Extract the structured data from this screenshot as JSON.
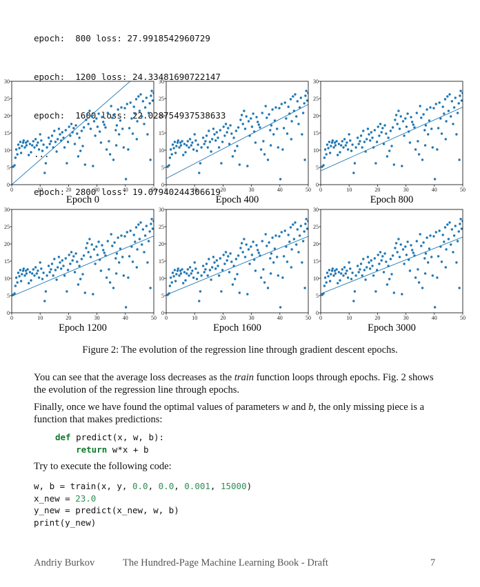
{
  "log_lines": [
    "epoch:  800 loss: 27.9918542960729",
    "epoch:  1200 loss: 24.33481690722147",
    "epoch:  1600 loss: 22.028754937538633",
    "...",
    "epoch:  2800 loss: 19.07940244306619"
  ],
  "chart_data": {
    "type": "scatter",
    "xlim": [
      0,
      50
    ],
    "ylim": [
      0,
      30
    ],
    "xticks": [
      0,
      10,
      20,
      30,
      40,
      50
    ],
    "yticks": [
      0,
      5,
      10,
      15,
      20,
      25,
      30
    ],
    "point_color": "#1f77b4",
    "line_color": "#1f77b4",
    "points": [
      [
        0.5,
        5.2
      ],
      [
        1,
        5.6
      ],
      [
        1.3,
        7.8
      ],
      [
        1.6,
        10.2
      ],
      [
        2,
        8.8
      ],
      [
        2.3,
        11.6
      ],
      [
        2.7,
        10.6
      ],
      [
        3,
        12.4
      ],
      [
        3.3,
        9.2
      ],
      [
        3.6,
        11.2
      ],
      [
        4,
        12.2
      ],
      [
        4.2,
        12.8
      ],
      [
        4.6,
        10.8
      ],
      [
        5,
        12.2
      ],
      [
        5.2,
        11.4
      ],
      [
        5.6,
        12.6
      ],
      [
        6,
        8.6
      ],
      [
        6.4,
        11.8
      ],
      [
        6.8,
        9.4
      ],
      [
        7.2,
        11.4
      ],
      [
        7.6,
        12.6
      ],
      [
        8,
        10.8
      ],
      [
        8.4,
        13.2
      ],
      [
        8.8,
        11.4
      ],
      [
        9.2,
        12.2
      ],
      [
        9.6,
        10.2
      ],
      [
        10,
        14.6
      ],
      [
        10.4,
        12.8
      ],
      [
        10.8,
        9.8
      ],
      [
        11.2,
        11.6
      ],
      [
        11.6,
        3.4
      ],
      [
        12,
        6.2
      ],
      [
        12.4,
        10.8
      ],
      [
        13,
        13.6
      ],
      [
        13.4,
        11.8
      ],
      [
        13.8,
        12.6
      ],
      [
        14.2,
        14.2
      ],
      [
        14.6,
        10.8
      ],
      [
        15,
        15.6
      ],
      [
        15.4,
        12.4
      ],
      [
        15.8,
        9.6
      ],
      [
        16.2,
        13.2
      ],
      [
        16.6,
        16.2
      ],
      [
        17,
        14.6
      ],
      [
        17.4,
        12.8
      ],
      [
        17.8,
        15.2
      ],
      [
        18.2,
        13.6
      ],
      [
        18.6,
        10.8
      ],
      [
        19,
        15.8
      ],
      [
        19.4,
        6.2
      ],
      [
        19.8,
        12.4
      ],
      [
        20.2,
        16.8
      ],
      [
        20.6,
        14.2
      ],
      [
        21,
        17.6
      ],
      [
        21.4,
        15.2
      ],
      [
        21.8,
        16.4
      ],
      [
        22.2,
        11.8
      ],
      [
        22.6,
        17.2
      ],
      [
        23,
        14.8
      ],
      [
        23.4,
        8.2
      ],
      [
        23.8,
        13.6
      ],
      [
        24.2,
        9.8
      ],
      [
        24.6,
        15.6
      ],
      [
        25,
        11.2
      ],
      [
        25.4,
        16.6
      ],
      [
        25.8,
        5.8
      ],
      [
        26.2,
        18.8
      ],
      [
        26.6,
        20.2
      ],
      [
        27,
        17.6
      ],
      [
        27.4,
        21.4
      ],
      [
        27.8,
        16.2
      ],
      [
        28.2,
        19.8
      ],
      [
        28.6,
        5.4
      ],
      [
        29,
        18.4
      ],
      [
        29.4,
        14.2
      ],
      [
        29.8,
        19.2
      ],
      [
        30.2,
        16.8
      ],
      [
        30.6,
        20.6
      ],
      [
        31,
        15.4
      ],
      [
        31.4,
        12.2
      ],
      [
        31.8,
        19.6
      ],
      [
        32.2,
        18.2
      ],
      [
        32.6,
        17.4
      ],
      [
        33,
        16.6
      ],
      [
        33.4,
        10.2
      ],
      [
        33.8,
        20.8
      ],
      [
        34.2,
        12.6
      ],
      [
        34.6,
        8.8
      ],
      [
        35,
        22.8
      ],
      [
        35.4,
        19.4
      ],
      [
        35.8,
        7.2
      ],
      [
        36.2,
        20.4
      ],
      [
        36.6,
        15.8
      ],
      [
        37,
        17.2
      ],
      [
        37.4,
        21.8
      ],
      [
        37.8,
        14.6
      ],
      [
        38.2,
        18.6
      ],
      [
        38.6,
        22.4
      ],
      [
        39,
        16.2
      ],
      [
        39.4,
        10.8
      ],
      [
        39.8,
        22.2
      ],
      [
        40.2,
        1.6
      ],
      [
        40.6,
        23.4
      ],
      [
        41,
        10.2
      ],
      [
        41.4,
        16.4
      ],
      [
        41.8,
        23.8
      ],
      [
        42.2,
        19.2
      ],
      [
        42.6,
        14.8
      ],
      [
        43,
        22.6
      ],
      [
        43.4,
        20.6
      ],
      [
        43.8,
        24.8
      ],
      [
        44.2,
        18.4
      ],
      [
        44.6,
        25.6
      ],
      [
        45,
        21.4
      ],
      [
        45.4,
        26.2
      ],
      [
        45.8,
        19.8
      ],
      [
        46.2,
        24.2
      ],
      [
        46.6,
        17.6
      ],
      [
        47,
        22.4
      ],
      [
        47.4,
        25.2
      ],
      [
        47.8,
        14.6
      ],
      [
        48.2,
        20.8
      ],
      [
        48.6,
        23.6
      ],
      [
        49,
        25.8
      ],
      [
        49.3,
        27.2
      ],
      [
        49.6,
        24.4
      ],
      [
        50,
        26.6
      ],
      [
        48.8,
        7.2
      ],
      [
        44,
        13.2
      ],
      [
        36.8,
        11.4
      ]
    ],
    "panels": [
      {
        "label": "Epoch 0",
        "line": [
          0,
          0.72
        ]
      },
      {
        "label": "Epoch 400",
        "line": [
          1.8,
          0.43
        ]
      },
      {
        "label": "Epoch 800",
        "line": [
          4.0,
          0.37
        ]
      },
      {
        "label": "Epoch 1200",
        "line": [
          4.8,
          0.35
        ]
      },
      {
        "label": "Epoch 1600",
        "line": [
          5.2,
          0.34
        ]
      },
      {
        "label": "Epoch 3000",
        "line": [
          5.5,
          0.33
        ]
      }
    ]
  },
  "figure_caption": "Figure 2: The evolution of the regression line through gradient descent epochs.",
  "para1_before": "You can see that the average loss decreases as the ",
  "para1_em": "train",
  "para1_after": " function loops through epochs. Fig. 2 shows the evolution of the regression line through epochs.",
  "para2_a": "Finally, once we have found the optimal values of parameters ",
  "para2_w": "w",
  "para2_b_and": " and ",
  "para2_b": "b",
  "para2_end": ", the only missing piece is a function that makes predictions:",
  "code1_def": "def",
  "code1_sig": " predict(x, w, b):",
  "code1_indent": "    ",
  "code1_return": "return",
  "code1_expr": " w*x + b",
  "para3": "Try to execute the following code:",
  "code2_l1_pre": "w, b = train(x, y, ",
  "code2_l1_n1": "0.0",
  "code2_sep1": ", ",
  "code2_l1_n2": "0.0",
  "code2_sep2": ", ",
  "code2_l1_n3": "0.001",
  "code2_sep3": ", ",
  "code2_l1_n4": "15000",
  "code2_l1_post": ")",
  "code2_l2_pre": "x_new = ",
  "code2_l2_num": "23.0",
  "code2_l3": "y_new = predict(x_new, w, b)",
  "code2_l4": "print(y_new)",
  "footer_author": "Andriy Burkov",
  "footer_title": "The Hundred-Page Machine Learning Book - Draft",
  "footer_page": "7"
}
